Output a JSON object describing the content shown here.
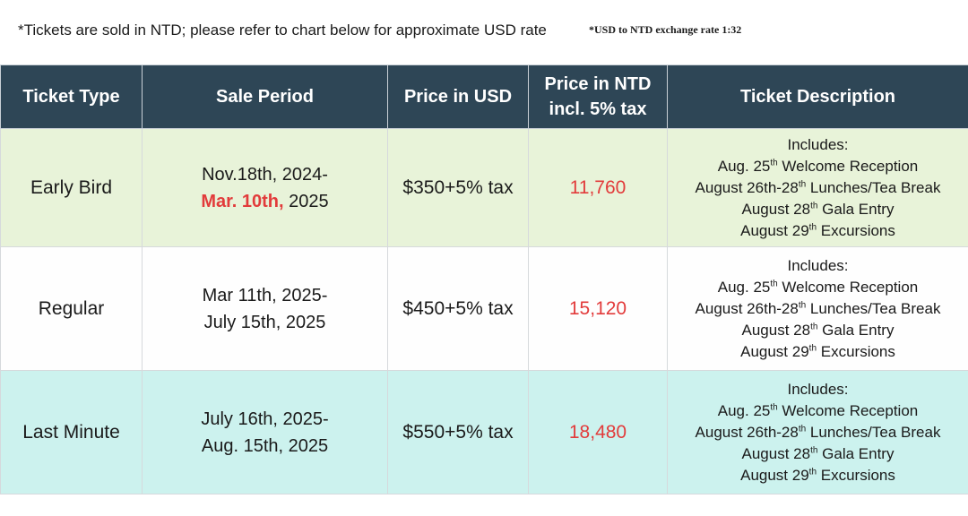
{
  "notes": {
    "main": "*Tickets are sold in NTD; please refer to chart below for approximate USD rate",
    "exchange_rate": "*USD to NTD exchange rate 1:32"
  },
  "table": {
    "headers": {
      "ticket_type": "Ticket Type",
      "sale_period": "Sale Period",
      "price_usd": "Price in USD",
      "price_ntd_line1": "Price in NTD",
      "price_ntd_line2": "incl. 5% tax",
      "description": "Ticket Description"
    },
    "rows": [
      {
        "type": "Early Bird",
        "period_start": "Nov.18th, 2024-",
        "period_end_highlight": "Mar. 10th,",
        "period_end_year": " 2025",
        "price_usd": "$350+5% tax",
        "price_ntd": "11,760"
      },
      {
        "type": "Regular",
        "period_start": "Mar 11th, 2025-",
        "period_end": "July 15th, 2025",
        "price_usd": "$450+5% tax",
        "price_ntd": "15,120"
      },
      {
        "type": "Last Minute",
        "period_start": "July 16th, 2025-",
        "period_end": "Aug. 15th, 2025",
        "price_usd": "$550+5% tax",
        "price_ntd": "18,480"
      }
    ],
    "description": {
      "includes": "Includes:",
      "reception_prefix": "Aug. 25",
      "reception_suffix": " Welcome Reception",
      "lunches_prefix": "August 26th-28",
      "lunches_suffix": " Lunches/Tea Break",
      "gala_prefix": "August 28",
      "gala_suffix": " Gala Entry",
      "excursions_prefix": "August 29",
      "excursions_suffix": " Excursions",
      "ordinal": "th"
    }
  },
  "colors": {
    "header_bg": "#2e4656",
    "early_bird_bg": "#e8f3d9",
    "regular_bg": "#fefefe",
    "last_minute_bg": "#ccf2ee",
    "price_red": "#e23b3b"
  }
}
